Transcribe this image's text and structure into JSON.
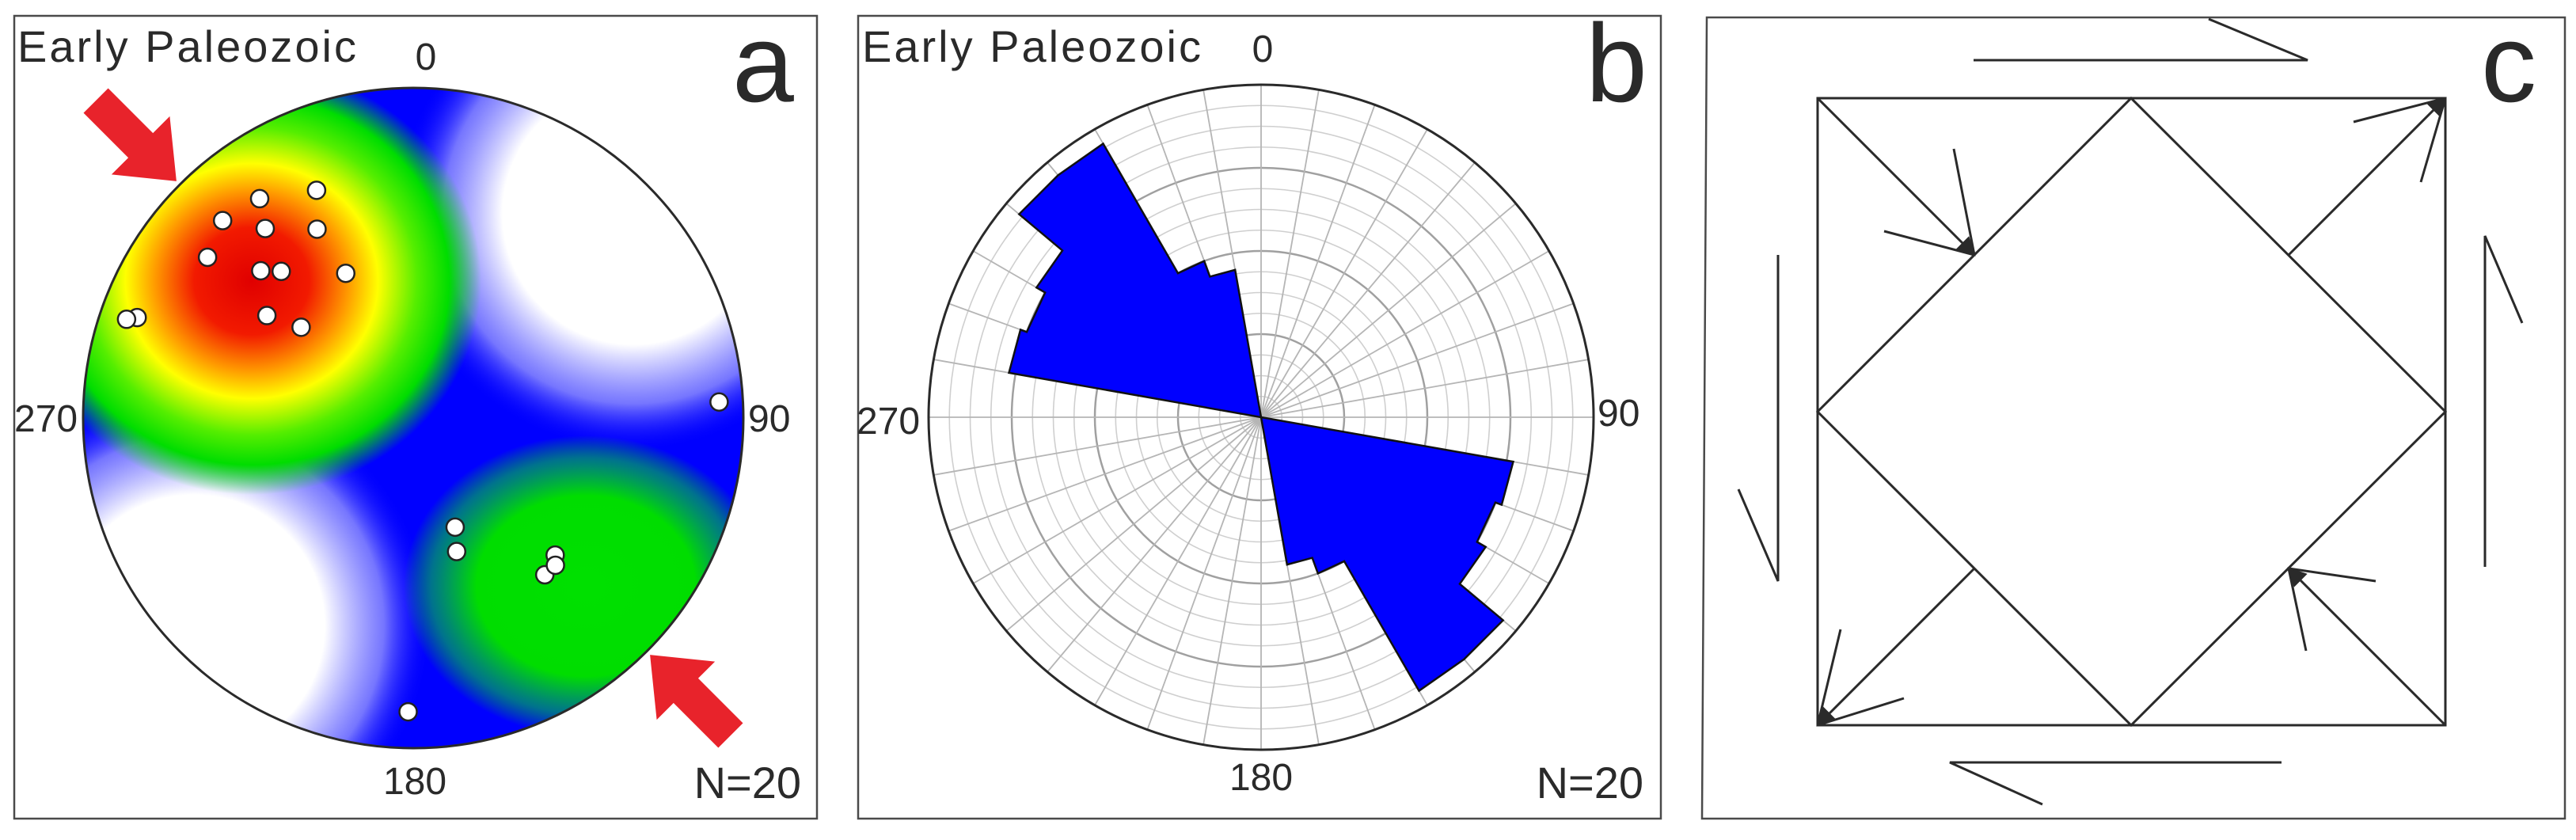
{
  "panels": {
    "a": {
      "letter": "a",
      "title": "Early Paleozoic",
      "n_label": "N=20",
      "azimuth_labels": {
        "n": "0",
        "e": "90",
        "s": "180",
        "w": "270"
      }
    },
    "b": {
      "letter": "b",
      "title": "Early Paleozoic",
      "n_label": "N=20",
      "azimuth_labels": {
        "n": "0",
        "e": "90",
        "s": "180",
        "w": "270"
      }
    },
    "c": {
      "letter": "c"
    }
  },
  "colors": {
    "density_high": "#e60000",
    "density_mid": "#ffff00",
    "density_low": "#00dd00",
    "density_base": "#0000ff",
    "rose_fill": "#0000ff",
    "arrow": "#e8232b",
    "grid": "#bdbdbd",
    "outline": "#2a2a2a"
  },
  "chart_data": [
    {
      "type": "scatter",
      "chart": "lower-hemisphere stereonet with density contours",
      "title": "Early Paleozoic",
      "n": 20,
      "coordinates": "trend (deg azimuth) / plunge (deg)",
      "points": [
        {
          "trend": 325,
          "plunge": 20
        },
        {
          "trend": 316,
          "plunge": 18
        },
        {
          "trend": 308,
          "plunge": 22
        },
        {
          "trend": 322,
          "plunge": 28
        },
        {
          "trend": 314,
          "plunge": 36
        },
        {
          "trend": 333,
          "plunge": 36
        },
        {
          "trend": 337,
          "plunge": 26
        },
        {
          "trend": 318,
          "plunge": 40
        },
        {
          "trend": 290,
          "plunge": 12
        },
        {
          "trend": 289,
          "plunge": 9
        },
        {
          "trend": 335,
          "plunge": 50
        },
        {
          "trend": 309,
          "plunge": 54
        },
        {
          "trend": 305,
          "plunge": 45
        },
        {
          "trend": 87,
          "plunge": 8
        },
        {
          "trend": 159,
          "plunge": 61
        },
        {
          "trend": 162,
          "plunge": 55
        },
        {
          "trend": 140,
          "plunge": 38
        },
        {
          "trend": 134,
          "plunge": 40
        },
        {
          "trend": 136,
          "plunge": 38
        },
        {
          "trend": 181,
          "plunge": 12
        }
      ],
      "density_maxima": [
        {
          "trend": 320,
          "plunge": 32,
          "level": "high"
        },
        {
          "trend": 140,
          "plunge": 45,
          "level": "low"
        }
      ],
      "principal_stress_arrows": [
        {
          "azimuth": 315
        },
        {
          "azimuth": 135
        }
      ]
    },
    {
      "type": "rose",
      "chart": "rose diagram of strike frequencies",
      "title": "Early Paleozoic",
      "n": 20,
      "bin_width_deg": 10,
      "bins": [
        {
          "from": 320,
          "to": 330,
          "radius": 0.95
        },
        {
          "from": 330,
          "to": 340,
          "radius": 0.5
        },
        {
          "from": 340,
          "to": 350,
          "radius": 0.45
        },
        {
          "from": 300,
          "to": 310,
          "radius": 0.78
        },
        {
          "from": 290,
          "to": 300,
          "radius": 0.75
        },
        {
          "from": 310,
          "to": 320,
          "radius": 0.95
        },
        {
          "from": 280,
          "to": 290,
          "radius": 0.77
        },
        {
          "from": 140,
          "to": 150,
          "radius": 0.95
        },
        {
          "from": 150,
          "to": 160,
          "radius": 0.5
        },
        {
          "from": 160,
          "to": 170,
          "radius": 0.45
        },
        {
          "from": 120,
          "to": 130,
          "radius": 0.78
        },
        {
          "from": 110,
          "to": 120,
          "radius": 0.75
        },
        {
          "from": 130,
          "to": 140,
          "radius": 0.95
        },
        {
          "from": 100,
          "to": 110,
          "radius": 0.77
        }
      ],
      "radial_rings": 16
    }
  ]
}
